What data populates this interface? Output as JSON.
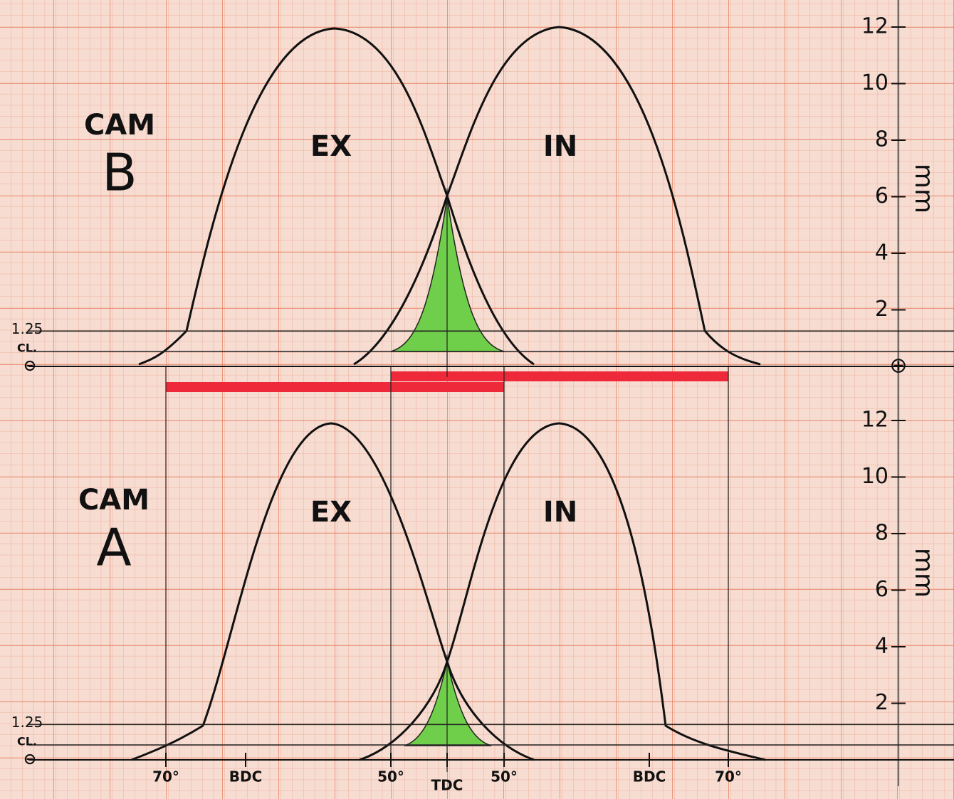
{
  "panels": [
    {
      "cam_label": "CAM",
      "cam_letter": "B",
      "exhaust_label": "EX",
      "intake_label": "IN",
      "yticks": [
        2,
        4,
        6,
        8,
        10,
        12
      ],
      "y_unit": "mm",
      "lift_level": 1.25,
      "clearance_label": "CL.",
      "zero_label": "⊖"
    },
    {
      "cam_label": "CAM",
      "cam_letter": "A",
      "exhaust_label": "EX",
      "intake_label": "IN",
      "yticks": [
        2,
        4,
        6,
        8,
        10,
        12
      ],
      "y_unit": "mm",
      "lift_level": 1.25,
      "clearance_label": "CL.",
      "zero_label": "⊖"
    }
  ],
  "x_labels": [
    "70°",
    "BDC",
    "50°",
    "TDC",
    "50°",
    "BDC",
    "70°"
  ],
  "origin_marker": "⊕"
}
